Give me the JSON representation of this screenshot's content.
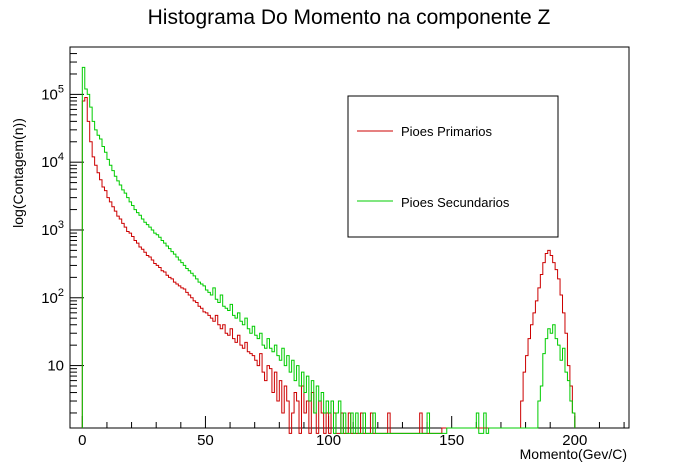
{
  "chart_data": {
    "type": "line",
    "title": "Histograma Do Momento na componente Z",
    "xlabel": "Momento(Gev/C)",
    "ylabel": "log(Contagem(n))",
    "xlim": [
      -5,
      222
    ],
    "ylim": [
      1.2,
      500000
    ],
    "y_scale": "log",
    "x_ticks": [
      "0",
      "50",
      "100",
      "150",
      "200"
    ],
    "x_tick_values": [
      0,
      50,
      100,
      150,
      200
    ],
    "y_tick_values": [
      10,
      100,
      1000,
      10000,
      100000
    ],
    "y_tick_base": "10",
    "y_tick_exponents": [
      "",
      "2",
      "3",
      "4",
      "5"
    ],
    "legend_position": "top-right",
    "bin_width": 1,
    "series": [
      {
        "name": "Pioes Primarios",
        "color": "#cc0000",
        "bins": [
          [
            0,
            80000
          ],
          [
            1,
            90000
          ],
          [
            2,
            40000
          ],
          [
            3,
            20000
          ],
          [
            4,
            12000
          ],
          [
            5,
            9000
          ],
          [
            6,
            7000
          ],
          [
            7,
            5500
          ],
          [
            8,
            4300
          ],
          [
            9,
            3800
          ],
          [
            10,
            3000
          ],
          [
            11,
            2600
          ],
          [
            12,
            2200
          ],
          [
            13,
            1900
          ],
          [
            14,
            1600
          ],
          [
            15,
            1450
          ],
          [
            16,
            1250
          ],
          [
            17,
            1100
          ],
          [
            18,
            950
          ],
          [
            19,
            900
          ],
          [
            20,
            800
          ],
          [
            21,
            700
          ],
          [
            22,
            640
          ],
          [
            23,
            560
          ],
          [
            24,
            520
          ],
          [
            25,
            470
          ],
          [
            26,
            420
          ],
          [
            27,
            400
          ],
          [
            28,
            360
          ],
          [
            29,
            320
          ],
          [
            30,
            300
          ],
          [
            31,
            280
          ],
          [
            32,
            250
          ],
          [
            33,
            240
          ],
          [
            34,
            215
          ],
          [
            35,
            200
          ],
          [
            36,
            190
          ],
          [
            37,
            170
          ],
          [
            38,
            160
          ],
          [
            39,
            150
          ],
          [
            40,
            140
          ],
          [
            41,
            135
          ],
          [
            42,
            120
          ],
          [
            43,
            110
          ],
          [
            44,
            100
          ],
          [
            45,
            90
          ],
          [
            46,
            85
          ],
          [
            47,
            75
          ],
          [
            48,
            70
          ],
          [
            49,
            62
          ],
          [
            50,
            60
          ],
          [
            51,
            55
          ],
          [
            52,
            50
          ],
          [
            53,
            45
          ],
          [
            54,
            55
          ],
          [
            55,
            40
          ],
          [
            56,
            35
          ],
          [
            57,
            40
          ],
          [
            58,
            30
          ],
          [
            59,
            28
          ],
          [
            60,
            35
          ],
          [
            61,
            25
          ],
          [
            62,
            22
          ],
          [
            63,
            28
          ],
          [
            64,
            20
          ],
          [
            65,
            18
          ],
          [
            66,
            22
          ],
          [
            67,
            16
          ],
          [
            68,
            15
          ],
          [
            69,
            14
          ],
          [
            70,
            12
          ],
          [
            71,
            10
          ],
          [
            72,
            15
          ],
          [
            73,
            8
          ],
          [
            74,
            6
          ],
          [
            75,
            10
          ],
          [
            76,
            9
          ],
          [
            77,
            4
          ],
          [
            78,
            8
          ],
          [
            79,
            3
          ],
          [
            80,
            6
          ],
          [
            81,
            2
          ],
          [
            82,
            5
          ],
          [
            83,
            3
          ],
          [
            84,
            1
          ],
          [
            85,
            2
          ],
          [
            86,
            4
          ],
          [
            87,
            3
          ],
          [
            88,
            1
          ],
          [
            89,
            5
          ],
          [
            90,
            2
          ],
          [
            91,
            3
          ],
          [
            92,
            1
          ],
          [
            93,
            4
          ],
          [
            94,
            2
          ],
          [
            95,
            1
          ],
          [
            96,
            3
          ],
          [
            97,
            2
          ],
          [
            98,
            1
          ],
          [
            99,
            2
          ],
          [
            100,
            1
          ],
          [
            101,
            3
          ],
          [
            102,
            2
          ],
          [
            103,
            1
          ],
          [
            104,
            1
          ],
          [
            105,
            2
          ],
          [
            106,
            1
          ],
          [
            107,
            1
          ],
          [
            108,
            2
          ],
          [
            109,
            1
          ],
          [
            110,
            1
          ],
          [
            111,
            1
          ],
          [
            112,
            1
          ],
          [
            113,
            2
          ],
          [
            114,
            1
          ],
          [
            115,
            1
          ],
          [
            116,
            1
          ],
          [
            117,
            2
          ],
          [
            118,
            1
          ],
          [
            119,
            1
          ],
          [
            120,
            1
          ],
          [
            121,
            1
          ],
          [
            122,
            1
          ],
          [
            123,
            1
          ],
          [
            124,
            2
          ],
          [
            125,
            1
          ],
          [
            126,
            1
          ],
          [
            127,
            1
          ],
          [
            128,
            1
          ],
          [
            129,
            1
          ],
          [
            130,
            1
          ],
          [
            131,
            1
          ],
          [
            132,
            1
          ],
          [
            133,
            1
          ],
          [
            134,
            1
          ],
          [
            135,
            1
          ],
          [
            136,
            1
          ],
          [
            137,
            2
          ],
          [
            138,
            1
          ],
          [
            139,
            1
          ],
          [
            140,
            1
          ],
          [
            141,
            1
          ],
          [
            142,
            1
          ],
          [
            143,
            1
          ],
          [
            144,
            1
          ],
          [
            145,
            1
          ],
          [
            178,
            3
          ],
          [
            179,
            8
          ],
          [
            180,
            14
          ],
          [
            181,
            25
          ],
          [
            182,
            40
          ],
          [
            183,
            60
          ],
          [
            184,
            90
          ],
          [
            185,
            140
          ],
          [
            186,
            220
          ],
          [
            187,
            330
          ],
          [
            188,
            450
          ],
          [
            189,
            500
          ],
          [
            190,
            420
          ],
          [
            191,
            330
          ],
          [
            192,
            260
          ],
          [
            193,
            190
          ],
          [
            194,
            110
          ],
          [
            195,
            60
          ],
          [
            196,
            30
          ],
          [
            197,
            10
          ],
          [
            198,
            5
          ],
          [
            199,
            2
          ]
        ]
      },
      {
        "name": "Pioes Secundarios",
        "color": "#00cc00",
        "bins": [
          [
            0,
            250000
          ],
          [
            1,
            120000
          ],
          [
            2,
            100000
          ],
          [
            3,
            65000
          ],
          [
            4,
            40000
          ],
          [
            5,
            30000
          ],
          [
            6,
            25000
          ],
          [
            7,
            22000
          ],
          [
            8,
            17000
          ],
          [
            9,
            14000
          ],
          [
            10,
            11000
          ],
          [
            11,
            9000
          ],
          [
            12,
            7500
          ],
          [
            13,
            6200
          ],
          [
            14,
            5300
          ],
          [
            15,
            4600
          ],
          [
            16,
            3900
          ],
          [
            17,
            3500
          ],
          [
            18,
            3000
          ],
          [
            19,
            2600
          ],
          [
            20,
            2300
          ],
          [
            21,
            2000
          ],
          [
            22,
            1800
          ],
          [
            23,
            1650
          ],
          [
            24,
            1450
          ],
          [
            25,
            1300
          ],
          [
            26,
            1200
          ],
          [
            27,
            1100
          ],
          [
            28,
            1000
          ],
          [
            29,
            900
          ],
          [
            30,
            850
          ],
          [
            31,
            780
          ],
          [
            32,
            700
          ],
          [
            33,
            640
          ],
          [
            34,
            580
          ],
          [
            35,
            530
          ],
          [
            36,
            480
          ],
          [
            37,
            440
          ],
          [
            38,
            400
          ],
          [
            39,
            360
          ],
          [
            40,
            330
          ],
          [
            41,
            300
          ],
          [
            42,
            270
          ],
          [
            43,
            250
          ],
          [
            44,
            230
          ],
          [
            45,
            210
          ],
          [
            46,
            190
          ],
          [
            47,
            170
          ],
          [
            48,
            160
          ],
          [
            49,
            150
          ],
          [
            50,
            130
          ],
          [
            51,
            120
          ],
          [
            52,
            110
          ],
          [
            53,
            140
          ],
          [
            54,
            95
          ],
          [
            55,
            85
          ],
          [
            56,
            110
          ],
          [
            57,
            75
          ],
          [
            58,
            70
          ],
          [
            59,
            65
          ],
          [
            60,
            80
          ],
          [
            61,
            55
          ],
          [
            62,
            50
          ],
          [
            63,
            60
          ],
          [
            64,
            45
          ],
          [
            65,
            40
          ],
          [
            66,
            50
          ],
          [
            67,
            35
          ],
          [
            68,
            30
          ],
          [
            69,
            38
          ],
          [
            70,
            28
          ],
          [
            71,
            25
          ],
          [
            72,
            30
          ],
          [
            73,
            20
          ],
          [
            74,
            18
          ],
          [
            75,
            25
          ],
          [
            76,
            18
          ],
          [
            77,
            16
          ],
          [
            78,
            20
          ],
          [
            79,
            14
          ],
          [
            80,
            12
          ],
          [
            81,
            18
          ],
          [
            82,
            10
          ],
          [
            83,
            14
          ],
          [
            84,
            8
          ],
          [
            85,
            12
          ],
          [
            86,
            6
          ],
          [
            87,
            10
          ],
          [
            88,
            5
          ],
          [
            89,
            8
          ],
          [
            90,
            4
          ],
          [
            91,
            7
          ],
          [
            92,
            3
          ],
          [
            93,
            6
          ],
          [
            94,
            2
          ],
          [
            95,
            5
          ],
          [
            96,
            3
          ],
          [
            97,
            4
          ],
          [
            98,
            2
          ],
          [
            99,
            3
          ],
          [
            100,
            2
          ],
          [
            101,
            3
          ],
          [
            102,
            1
          ],
          [
            103,
            2
          ],
          [
            104,
            3
          ],
          [
            105,
            1
          ],
          [
            106,
            2
          ],
          [
            107,
            1
          ],
          [
            108,
            1
          ],
          [
            109,
            2
          ],
          [
            110,
            1
          ],
          [
            111,
            2
          ],
          [
            112,
            1
          ],
          [
            113,
            1
          ],
          [
            114,
            2
          ],
          [
            115,
            1
          ],
          [
            116,
            1
          ],
          [
            117,
            1
          ],
          [
            118,
            2
          ],
          [
            119,
            1
          ],
          [
            120,
            1
          ],
          [
            121,
            1
          ],
          [
            122,
            1
          ],
          [
            123,
            1
          ],
          [
            124,
            1
          ],
          [
            125,
            1
          ],
          [
            126,
            1
          ],
          [
            127,
            1
          ],
          [
            128,
            1
          ],
          [
            129,
            1
          ],
          [
            130,
            1
          ],
          [
            131,
            1
          ],
          [
            132,
            1
          ],
          [
            133,
            1
          ],
          [
            134,
            1
          ],
          [
            135,
            1
          ],
          [
            136,
            1
          ],
          [
            137,
            1
          ],
          [
            138,
            1
          ],
          [
            139,
            1
          ],
          [
            140,
            2
          ],
          [
            141,
            1
          ],
          [
            142,
            1
          ],
          [
            143,
            1
          ],
          [
            144,
            1
          ],
          [
            145,
            1
          ],
          [
            146,
            1
          ],
          [
            147,
            1
          ],
          [
            160,
            2
          ],
          [
            161,
            1
          ],
          [
            162,
            1
          ],
          [
            163,
            2
          ],
          [
            164,
            1
          ],
          [
            185,
            3
          ],
          [
            186,
            5
          ],
          [
            187,
            15
          ],
          [
            188,
            25
          ],
          [
            189,
            35
          ],
          [
            190,
            30
          ],
          [
            191,
            40
          ],
          [
            192,
            25
          ],
          [
            193,
            20
          ],
          [
            194,
            12
          ],
          [
            195,
            18
          ],
          [
            196,
            8
          ],
          [
            197,
            6
          ],
          [
            198,
            3
          ],
          [
            199,
            2
          ]
        ]
      }
    ]
  }
}
